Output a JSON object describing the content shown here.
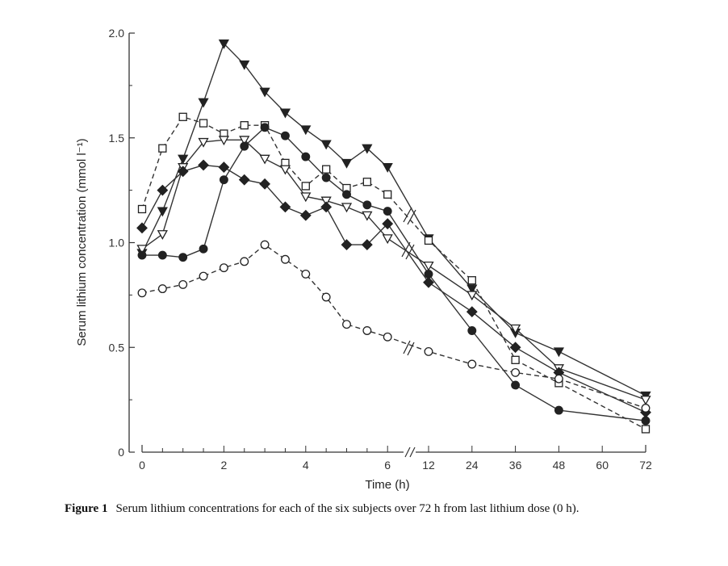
{
  "chart_data": {
    "type": "line",
    "xlabel": "Time (h)",
    "ylabel": "Serum lithium concentration (mmol l⁻¹)",
    "ylim": [
      0,
      2.0
    ],
    "x_ticks": [
      "0",
      "2",
      "4",
      "6",
      "12",
      "24",
      "36",
      "48",
      "60",
      "72"
    ],
    "y_ticks": [
      "0",
      "0.5",
      "1.0",
      "1.5",
      "2.0"
    ],
    "x": [
      0,
      0.5,
      1,
      1.5,
      2,
      2.5,
      3,
      3.5,
      4,
      4.5,
      5,
      5.5,
      6,
      12,
      24,
      36,
      48,
      72
    ],
    "series": [
      {
        "marker": "filled-triangle-down",
        "dashed": false,
        "values": [
          0.95,
          1.15,
          1.4,
          1.67,
          1.95,
          1.85,
          1.72,
          1.62,
          1.54,
          1.47,
          1.38,
          1.45,
          1.36,
          1.02,
          0.78,
          0.57,
          0.48,
          0.27
        ]
      },
      {
        "marker": "open-square",
        "dashed": true,
        "values": [
          1.16,
          1.45,
          1.6,
          1.57,
          1.52,
          1.56,
          1.56,
          1.38,
          1.27,
          1.35,
          1.26,
          1.29,
          1.23,
          1.01,
          0.82,
          0.44,
          0.33,
          0.11
        ]
      },
      {
        "marker": "open-triangle-down",
        "dashed": false,
        "values": [
          0.97,
          1.04,
          1.36,
          1.48,
          1.49,
          1.49,
          1.4,
          1.35,
          1.22,
          1.2,
          1.17,
          1.13,
          1.02,
          0.89,
          0.75,
          0.59,
          0.4,
          0.25
        ]
      },
      {
        "marker": "filled-circle",
        "dashed": false,
        "values": [
          0.94,
          0.94,
          0.93,
          0.97,
          1.3,
          1.46,
          1.55,
          1.51,
          1.41,
          1.31,
          1.23,
          1.18,
          1.15,
          0.85,
          0.58,
          0.32,
          0.2,
          0.15
        ]
      },
      {
        "marker": "filled-diamond",
        "dashed": false,
        "values": [
          1.07,
          1.25,
          1.34,
          1.37,
          1.36,
          1.3,
          1.28,
          1.17,
          1.13,
          1.17,
          0.99,
          0.99,
          1.09,
          0.81,
          0.67,
          0.5,
          0.38,
          0.19
        ]
      },
      {
        "marker": "open-circle",
        "dashed": true,
        "values": [
          0.76,
          0.78,
          0.8,
          0.84,
          0.88,
          0.91,
          0.99,
          0.92,
          0.85,
          0.74,
          0.61,
          0.58,
          0.55,
          0.48,
          0.42,
          0.38,
          0.35,
          0.21
        ]
      }
    ]
  },
  "caption": {
    "label": "Figure 1",
    "text": "Serum lithium concentrations for each of the six subjects over 72 h from last lithium dose (0 h)."
  }
}
